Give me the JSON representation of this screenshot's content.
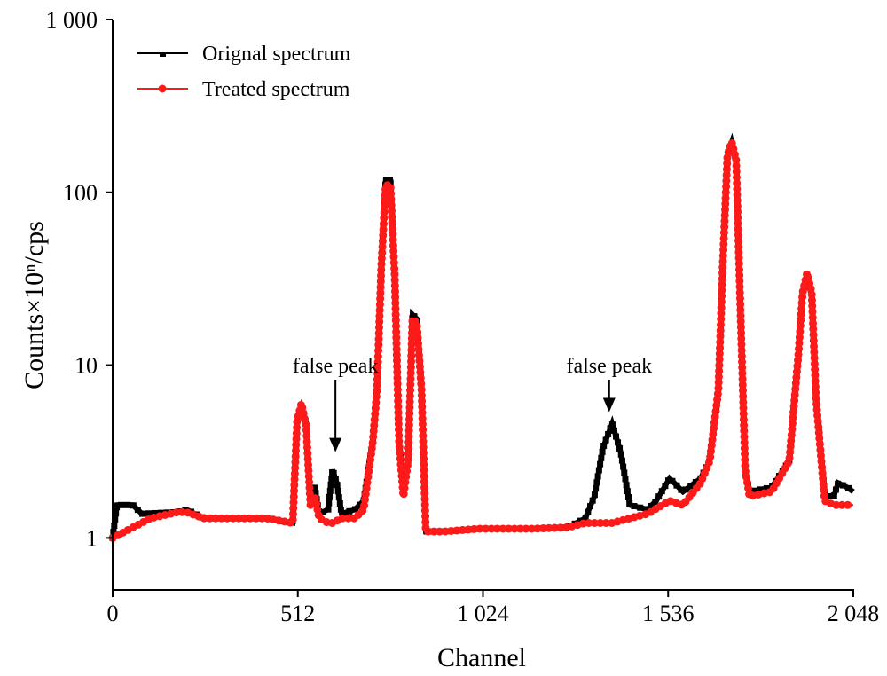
{
  "chart_data": {
    "type": "line",
    "xlabel": "Channel",
    "ylabel": "Counts×10ⁿ/cps",
    "xlim": [
      0,
      2048
    ],
    "ylim": [
      0.5,
      1000
    ],
    "yscale": "log",
    "grid": false,
    "legend_position": "top-left",
    "xticks": [
      0,
      512,
      1024,
      1536,
      2048
    ],
    "xtick_labels": [
      "0",
      "512",
      "1 024",
      "1 536",
      "2 048"
    ],
    "yticks": [
      1,
      10,
      100,
      1000
    ],
    "ytick_labels": [
      "1",
      "10",
      "100",
      "1 000"
    ],
    "series": [
      {
        "name": "Orignal spectrum",
        "color": "#000000",
        "marker": "square",
        "points": [
          [
            0,
            1.0
          ],
          [
            12,
            1.55
          ],
          [
            56,
            1.55
          ],
          [
            81,
            1.38
          ],
          [
            179,
            1.41
          ],
          [
            204,
            1.46
          ],
          [
            253,
            1.3
          ],
          [
            424,
            1.3
          ],
          [
            498,
            1.22
          ],
          [
            510,
            4.75
          ],
          [
            522,
            5.67
          ],
          [
            535,
            4.48
          ],
          [
            547,
            1.55
          ],
          [
            559,
            1.96
          ],
          [
            571,
            1.38
          ],
          [
            596,
            1.46
          ],
          [
            608,
            2.48
          ],
          [
            620,
            2.08
          ],
          [
            633,
            1.38
          ],
          [
            670,
            1.46
          ],
          [
            694,
            1.64
          ],
          [
            719,
            3.54
          ],
          [
            731,
            7.18
          ],
          [
            743,
            37.5
          ],
          [
            755,
            118
          ],
          [
            768,
            118
          ],
          [
            780,
            33.2
          ],
          [
            792,
            3.54
          ],
          [
            804,
            2.08
          ],
          [
            817,
            2.79
          ],
          [
            829,
            19.6
          ],
          [
            841,
            18.5
          ],
          [
            854,
            7.18
          ],
          [
            866,
            1.09
          ],
          [
            915,
            1.09
          ],
          [
            1013,
            1.13
          ],
          [
            1160,
            1.13
          ],
          [
            1258,
            1.15
          ],
          [
            1307,
            1.3
          ],
          [
            1332,
            1.74
          ],
          [
            1356,
            3.33
          ],
          [
            1381,
            4.59
          ],
          [
            1405,
            3.14
          ],
          [
            1430,
            1.55
          ],
          [
            1479,
            1.46
          ],
          [
            1503,
            1.64
          ],
          [
            1540,
            2.21
          ],
          [
            1553,
            2.08
          ],
          [
            1577,
            1.85
          ],
          [
            1626,
            2.21
          ],
          [
            1651,
            2.79
          ],
          [
            1675,
            7.18
          ],
          [
            1687,
            37.5
          ],
          [
            1700,
            164
          ],
          [
            1712,
            195
          ],
          [
            1724,
            154
          ],
          [
            1736,
            20.8
          ],
          [
            1749,
            2.48
          ],
          [
            1761,
            1.85
          ],
          [
            1822,
            1.96
          ],
          [
            1871,
            2.79
          ],
          [
            1896,
            11.4
          ],
          [
            1908,
            26.3
          ],
          [
            1920,
            34.0
          ],
          [
            1933,
            26.3
          ],
          [
            1945,
            6.38
          ],
          [
            1969,
            1.74
          ],
          [
            1994,
            1.74
          ],
          [
            2006,
            2.08
          ],
          [
            2031,
            1.96
          ],
          [
            2048,
            1.85
          ]
        ]
      },
      {
        "name": "Treated spectrum",
        "color": "#ff1a1a",
        "marker": "circle",
        "points": [
          [
            0,
            1.0
          ],
          [
            56,
            1.15
          ],
          [
            105,
            1.3
          ],
          [
            179,
            1.41
          ],
          [
            204,
            1.41
          ],
          [
            253,
            1.3
          ],
          [
            424,
            1.3
          ],
          [
            498,
            1.22
          ],
          [
            510,
            4.75
          ],
          [
            522,
            6.0
          ],
          [
            535,
            4.48
          ],
          [
            547,
            1.55
          ],
          [
            559,
            1.74
          ],
          [
            571,
            1.3
          ],
          [
            596,
            1.22
          ],
          [
            608,
            1.22
          ],
          [
            633,
            1.3
          ],
          [
            670,
            1.3
          ],
          [
            694,
            1.46
          ],
          [
            719,
            3.54
          ],
          [
            731,
            7.18
          ],
          [
            743,
            37.5
          ],
          [
            755,
            110
          ],
          [
            768,
            110
          ],
          [
            780,
            33.2
          ],
          [
            792,
            3.54
          ],
          [
            804,
            1.74
          ],
          [
            817,
            2.79
          ],
          [
            829,
            18.5
          ],
          [
            841,
            17.5
          ],
          [
            854,
            7.18
          ],
          [
            866,
            1.09
          ],
          [
            915,
            1.09
          ],
          [
            1013,
            1.13
          ],
          [
            1160,
            1.13
          ],
          [
            1258,
            1.15
          ],
          [
            1307,
            1.22
          ],
          [
            1332,
            1.22
          ],
          [
            1381,
            1.22
          ],
          [
            1430,
            1.3
          ],
          [
            1479,
            1.38
          ],
          [
            1540,
            1.64
          ],
          [
            1577,
            1.55
          ],
          [
            1626,
            2.08
          ],
          [
            1651,
            2.79
          ],
          [
            1675,
            7.18
          ],
          [
            1687,
            37.5
          ],
          [
            1700,
            164
          ],
          [
            1712,
            195
          ],
          [
            1724,
            154
          ],
          [
            1736,
            20.8
          ],
          [
            1749,
            2.48
          ],
          [
            1761,
            1.74
          ],
          [
            1822,
            1.85
          ],
          [
            1871,
            2.79
          ],
          [
            1896,
            11.4
          ],
          [
            1908,
            26.3
          ],
          [
            1920,
            34.0
          ],
          [
            1933,
            26.3
          ],
          [
            1945,
            6.38
          ],
          [
            1969,
            1.64
          ],
          [
            1994,
            1.55
          ],
          [
            2006,
            1.55
          ],
          [
            2031,
            1.55
          ],
          [
            2048,
            1.55
          ]
        ]
      }
    ],
    "annotations": [
      {
        "text": "false peak",
        "arrow_to": [
          616,
          3.14
        ]
      },
      {
        "text": "false peak",
        "arrow_to": [
          1373,
          5.35
        ]
      }
    ]
  }
}
